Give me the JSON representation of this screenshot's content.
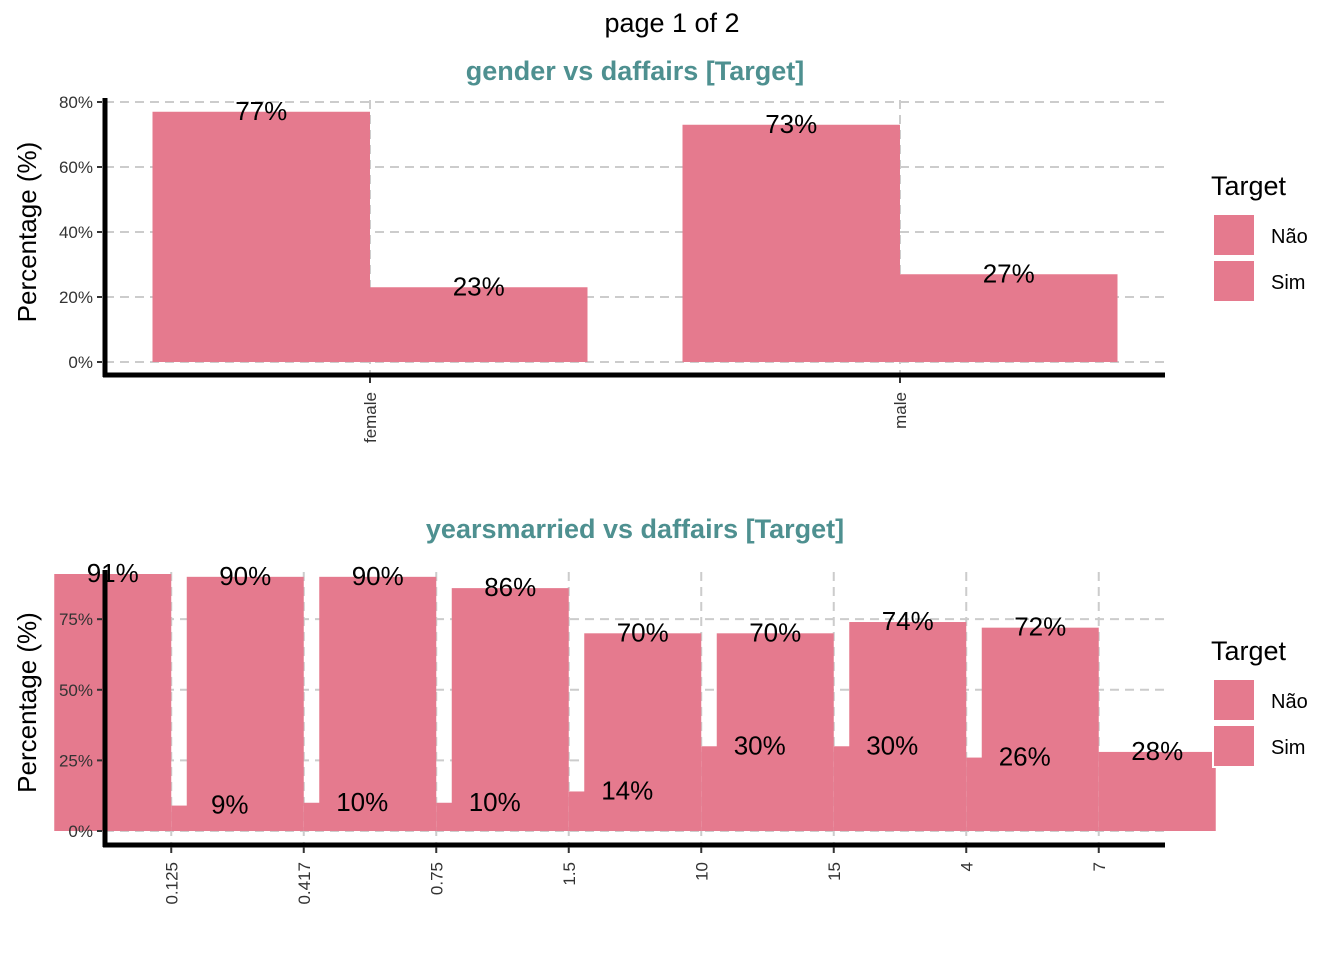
{
  "page_title": "page 1 of 2",
  "colors": {
    "title": "#4E9090",
    "bar_nao": "#E57A8E",
    "bar_sim": "#E57A8E",
    "grid": "#CCCCCC",
    "axis": "#000000"
  },
  "chart_data": [
    {
      "type": "bar",
      "title": "gender vs daffairs [Target]",
      "xlabel": "",
      "ylabel": "Percentage (%)",
      "categories": [
        "female",
        "male"
      ],
      "series": [
        {
          "name": "Não",
          "values": [
            77,
            73
          ]
        },
        {
          "name": "Sim",
          "values": [
            23,
            27
          ]
        }
      ],
      "data_labels": [
        [
          "77%",
          "23%"
        ],
        [
          "73%",
          "27%"
        ]
      ],
      "ylim": [
        0,
        80
      ],
      "yticks": [
        0,
        20,
        40,
        60,
        80
      ],
      "ytick_labels": [
        "0%",
        "20%",
        "40%",
        "60%",
        "80%"
      ],
      "grid": true,
      "legend": {
        "title": "Target",
        "entries": [
          "Não",
          "Sim"
        ],
        "placement": "right"
      }
    },
    {
      "type": "bar",
      "title": "yearsmarried vs daffairs [Target]",
      "xlabel": "",
      "ylabel": "Percentage (%)",
      "categories": [
        "0.125",
        "0.417",
        "0.75",
        "1.5",
        "10",
        "15",
        "4",
        "7"
      ],
      "series": [
        {
          "name": "Não",
          "values": [
            91,
            90,
            90,
            86,
            70,
            70,
            74,
            72
          ]
        },
        {
          "name": "Sim",
          "values": [
            9,
            10,
            10,
            14,
            30,
            30,
            26,
            28
          ]
        }
      ],
      "data_labels": [
        [
          "91%",
          "9%"
        ],
        [
          "90%",
          "10%"
        ],
        [
          "90%",
          "10%"
        ],
        [
          "86%",
          "14%"
        ],
        [
          "70%",
          "30%"
        ],
        [
          "70%",
          "30%"
        ],
        [
          "74%",
          "26%"
        ],
        [
          "72%",
          "28%"
        ]
      ],
      "ylim": [
        0,
        91
      ],
      "yticks": [
        0,
        25,
        50,
        75
      ],
      "ytick_labels": [
        "0%",
        "25%",
        "50%",
        "75%"
      ],
      "grid": true,
      "legend": {
        "title": "Target",
        "entries": [
          "Não",
          "Sim"
        ],
        "placement": "right"
      }
    }
  ]
}
